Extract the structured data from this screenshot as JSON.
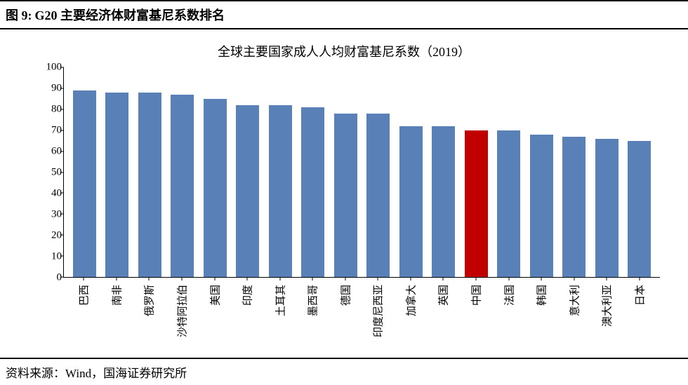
{
  "header": {
    "prefix": "图 9:",
    "title": "G20 主要经济体财富基尼系数排名"
  },
  "chart": {
    "type": "bar",
    "title": "全球主要国家成人人均财富基尼系数（2019）",
    "ylim": [
      0,
      100
    ],
    "ytick_step": 10,
    "yticks": [
      0,
      10,
      20,
      30,
      40,
      50,
      60,
      70,
      80,
      90,
      100
    ],
    "background_color": "#ffffff",
    "axis_color": "#000000",
    "default_bar_color": "#5a81b7",
    "highlight_bar_color": "#c00000",
    "label_fontsize": 15,
    "title_fontsize": 18,
    "bar_width_ratio": 0.72,
    "categories": [
      "巴西",
      "南非",
      "俄罗斯",
      "沙特阿拉伯",
      "美国",
      "印度",
      "土耳其",
      "墨西哥",
      "德国",
      "印度尼西亚",
      "加拿大",
      "英国",
      "中国",
      "法国",
      "韩国",
      "意大利",
      "澳大利亚",
      "日本"
    ],
    "values": [
      89,
      88,
      88,
      87,
      85,
      82,
      82,
      81,
      78,
      78,
      72,
      72,
      70,
      70,
      68,
      67,
      66,
      65
    ],
    "highlight_index": 12
  },
  "source": {
    "label": "资料来源：",
    "text": "Wind，国海证券研究所"
  }
}
